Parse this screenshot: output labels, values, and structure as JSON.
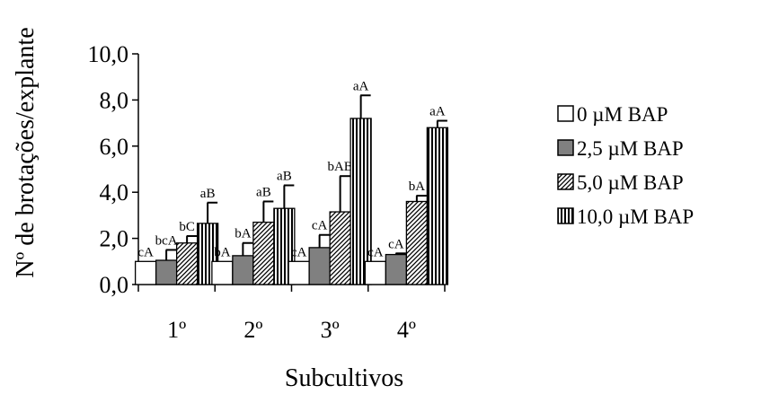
{
  "chart_data": {
    "type": "bar",
    "xlabel": "Subcultivos",
    "ylabel": "Nº de brotações/explante",
    "ylim": [
      0,
      10
    ],
    "y_ticks": [
      "0,0",
      "2,0",
      "4,0",
      "6,0",
      "8,0",
      "10,0"
    ],
    "grid": false,
    "legend_position": "right",
    "categories": [
      "1º",
      "2º",
      "3º",
      "4º"
    ],
    "series": [
      {
        "name": "0 µM BAP",
        "pattern": "white",
        "values": [
          1.0,
          1.0,
          1.0,
          1.0
        ],
        "errors": [
          0.0,
          0.0,
          0.0,
          0.0
        ],
        "labels": [
          "cA",
          "bA",
          "cA",
          "cA"
        ]
      },
      {
        "name": "2,5 µM BAP",
        "pattern": "gray",
        "values": [
          1.05,
          1.25,
          1.6,
          1.3
        ],
        "errors": [
          0.45,
          0.55,
          0.55,
          0.05
        ],
        "labels": [
          "bcA",
          "bA",
          "cA",
          "cA"
        ]
      },
      {
        "name": "5,0 µM BAP",
        "pattern": "diagonal",
        "values": [
          1.8,
          2.7,
          3.15,
          3.6
        ],
        "errors": [
          0.3,
          0.9,
          1.55,
          0.25
        ],
        "labels": [
          "bC",
          "aB",
          "bAB",
          "bA"
        ]
      },
      {
        "name": "10,0 µM BAP",
        "pattern": "vertical",
        "values": [
          2.65,
          3.3,
          7.2,
          6.8
        ],
        "errors": [
          0.9,
          1.0,
          1.0,
          0.3
        ],
        "labels": [
          "aB",
          "aB",
          "aA",
          "aA"
        ]
      }
    ]
  }
}
